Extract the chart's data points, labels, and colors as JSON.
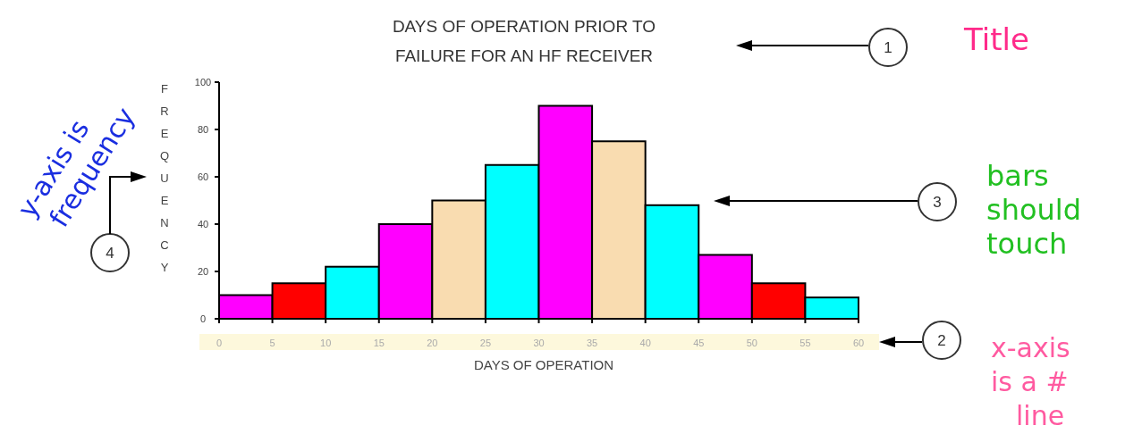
{
  "chart_data": {
    "type": "histogram",
    "title": "DAYS OF OPERATION PRIOR TO\nFAILURE FOR AN HF RECEIVER",
    "xlabel": "DAYS OF OPERATION",
    "ylabel": "FREQUENCY",
    "bins": [
      0,
      5,
      10,
      15,
      20,
      25,
      30,
      35,
      40,
      45,
      50,
      55,
      60
    ],
    "values": [
      10,
      15,
      22,
      40,
      50,
      65,
      90,
      75,
      48,
      27,
      15,
      9
    ],
    "colors": [
      "#ff00ff",
      "#ff0000",
      "#00ffff",
      "#ff00ff",
      "#f9dcb0",
      "#00ffff",
      "#ff00ff",
      "#f9dcb0",
      "#00ffff",
      "#ff00ff",
      "#ff0000",
      "#00ffff"
    ],
    "xlim": [
      0,
      60
    ],
    "xticks": [
      0,
      5,
      10,
      15,
      20,
      25,
      30,
      35,
      40,
      45,
      50,
      55,
      60
    ],
    "ylim": [
      0,
      100
    ],
    "yticks": [
      0,
      20,
      40,
      60,
      80,
      100
    ],
    "grid": false,
    "annotations": [
      "1",
      "Title",
      "2",
      "x-axis is a # line",
      "3",
      "bars should touch",
      "4",
      "y-axis is frequency"
    ]
  }
}
